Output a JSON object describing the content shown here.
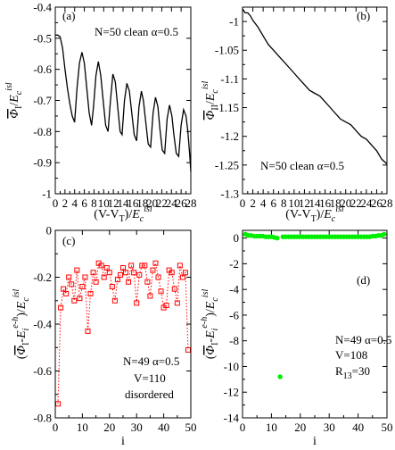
{
  "chart_data": [
    {
      "id": "a",
      "type": "line",
      "panel_label": "(a)",
      "annotation_lines": [
        "N=50  clean  α=0.5"
      ],
      "xlabel": "(V-V_T)/E_c^isl",
      "ylabel": "Φ_I/E_c^isl (overlined)",
      "xlim": [
        0,
        28
      ],
      "ylim": [
        -1,
        -0.4
      ],
      "xticks": [
        0,
        2,
        4,
        6,
        8,
        10,
        12,
        14,
        16,
        18,
        20,
        22,
        24,
        26,
        28
      ],
      "yticks": [
        -1,
        -0.9,
        -0.8,
        -0.7,
        -0.6,
        -0.5,
        -0.4
      ],
      "ytick_labels": [
        "-1",
        "-0.9",
        "-0.8",
        "-0.7",
        "-0.6",
        "-0.5",
        "-0.4"
      ],
      "series": [
        {
          "color": "#000000",
          "x": [
            0,
            0.5,
            1,
            1.5,
            2,
            2.5,
            3,
            3.5,
            4.0,
            4.5,
            5,
            5.5,
            6.0,
            6.5,
            7,
            7.5,
            7.9,
            8.4,
            8.9,
            9.4,
            9.9,
            10.4,
            10.9,
            11.4,
            11.9,
            12.4,
            12.9,
            13.4,
            13.8,
            14.3,
            14.8,
            15.3,
            15.8,
            16.3,
            16.8,
            17.3,
            17.8,
            18.2,
            18.7,
            19.2,
            19.7,
            20.2,
            20.7,
            21.2,
            21.6,
            22.1,
            22.6,
            23.1,
            23.6,
            24.1,
            24.5,
            25.0,
            25.5,
            26.0,
            26.5,
            27.0,
            27.4,
            27.8,
            28
          ],
          "y": [
            -0.49,
            -0.49,
            -0.495,
            -0.53,
            -0.6,
            -0.66,
            -0.71,
            -0.75,
            -0.77,
            -0.66,
            -0.58,
            -0.545,
            -0.58,
            -0.66,
            -0.74,
            -0.78,
            -0.72,
            -0.62,
            -0.575,
            -0.62,
            -0.7,
            -0.78,
            -0.8,
            -0.7,
            -0.615,
            -0.64,
            -0.72,
            -0.8,
            -0.81,
            -0.7,
            -0.645,
            -0.67,
            -0.74,
            -0.81,
            -0.83,
            -0.72,
            -0.67,
            -0.7,
            -0.77,
            -0.84,
            -0.85,
            -0.74,
            -0.69,
            -0.72,
            -0.79,
            -0.86,
            -0.87,
            -0.76,
            -0.715,
            -0.75,
            -0.81,
            -0.87,
            -0.88,
            -0.78,
            -0.73,
            -0.75,
            -0.8,
            -0.88,
            -0.93
          ]
        }
      ]
    },
    {
      "id": "b",
      "type": "line",
      "panel_label": "(b)",
      "annotation_lines": [
        "N=50  clean  α=0.5"
      ],
      "xlabel": "(V-V_T)/E_c^isl",
      "ylabel": "Φ_II/E_c^isl (overlined)",
      "xlim": [
        0,
        28
      ],
      "ylim": [
        -1.3,
        -0.975
      ],
      "xticks": [
        0,
        2,
        4,
        6,
        8,
        10,
        12,
        14,
        16,
        18,
        20,
        22,
        24,
        26,
        28
      ],
      "yticks": [
        -1.3,
        -1.25,
        -1.2,
        -1.15,
        -1.1,
        -1.05,
        -1
      ],
      "ytick_labels": [
        "-1.3",
        "-1.25",
        "-1.2",
        "-1.15",
        "-1.1",
        "-1.05",
        "-1"
      ],
      "series": [
        {
          "color": "#000000",
          "x": [
            0,
            0.5,
            1,
            1.5,
            2,
            3,
            4,
            5,
            6,
            7,
            8,
            9,
            10,
            11,
            12,
            13,
            14,
            15,
            16,
            17,
            18,
            19,
            20,
            21,
            22,
            23,
            24,
            25,
            26,
            27,
            28
          ],
          "y": [
            -0.978,
            -0.985,
            -0.985,
            -0.99,
            -0.998,
            -1.01,
            -1.025,
            -1.04,
            -1.05,
            -1.06,
            -1.07,
            -1.08,
            -1.09,
            -1.1,
            -1.11,
            -1.12,
            -1.125,
            -1.13,
            -1.14,
            -1.15,
            -1.16,
            -1.17,
            -1.175,
            -1.18,
            -1.19,
            -1.2,
            -1.205,
            -1.215,
            -1.225,
            -1.24,
            -1.248
          ]
        }
      ]
    },
    {
      "id": "c",
      "type": "line",
      "panel_label": "(c)",
      "annotation_lines": [
        "N=49  α=0.5",
        "V=110",
        "disordered"
      ],
      "xlabel": "i",
      "ylabel": "(Φ_I - E_i^{e-h})/E_c^isl",
      "xlim": [
        0,
        50
      ],
      "ylim": [
        -0.8,
        0
      ],
      "xticks": [
        0,
        10,
        20,
        30,
        40,
        50
      ],
      "yticks": [
        -0.8,
        -0.6,
        -0.4,
        -0.2,
        0
      ],
      "ytick_labels": [
        "-0.8",
        "-0.6",
        "-0.4",
        "-0.2",
        "0"
      ],
      "series": [
        {
          "color": "#ff0000",
          "marker": "open-square",
          "x": [
            1,
            2,
            3,
            4,
            5,
            6,
            7,
            8,
            9,
            10,
            11,
            12,
            13,
            14,
            15,
            16,
            17,
            18,
            19,
            20,
            21,
            22,
            23,
            24,
            25,
            26,
            27,
            28,
            29,
            30,
            31,
            32,
            33,
            34,
            35,
            36,
            37,
            38,
            39,
            40,
            41,
            42,
            43,
            44,
            45,
            46,
            47,
            48,
            49
          ],
          "y": [
            -0.74,
            -0.33,
            -0.25,
            -0.27,
            -0.2,
            -0.23,
            -0.3,
            -0.17,
            -0.29,
            -0.24,
            -0.2,
            -0.43,
            -0.27,
            -0.18,
            -0.22,
            -0.14,
            -0.15,
            -0.2,
            -0.16,
            -0.18,
            -0.24,
            -0.3,
            -0.21,
            -0.19,
            -0.16,
            -0.18,
            -0.22,
            -0.15,
            -0.18,
            -0.31,
            -0.19,
            -0.15,
            -0.15,
            -0.22,
            -0.28,
            -0.17,
            -0.14,
            -0.2,
            -0.26,
            -0.33,
            -0.32,
            -0.17,
            -0.18,
            -0.25,
            -0.31,
            -0.15,
            -0.2,
            -0.18,
            -0.51
          ]
        }
      ]
    },
    {
      "id": "d",
      "type": "scatter",
      "panel_label": "(d)",
      "annotation_lines": [
        "N=49  α=0.5",
        "V=108",
        "R_13=30"
      ],
      "xlabel": "i",
      "ylabel": "(Φ_I - E_i^{e-h})/E_c^isl",
      "xlim": [
        0,
        50
      ],
      "ylim": [
        -14,
        0.6
      ],
      "xticks": [
        0,
        10,
        20,
        30,
        40,
        50
      ],
      "yticks": [
        -14,
        -12,
        -10,
        -8,
        -6,
        -4,
        -2,
        0
      ],
      "ytick_labels": [
        "-14",
        "-12",
        "-10",
        "-8",
        "-6",
        "-4",
        "-2",
        "0"
      ],
      "series": [
        {
          "color": "#00ee00",
          "marker": "filled-circle",
          "x": [
            1,
            2,
            3,
            4,
            5,
            6,
            7,
            8,
            9,
            10,
            11,
            12,
            13,
            14,
            15,
            16,
            17,
            18,
            19,
            20,
            21,
            22,
            23,
            24,
            25,
            26,
            27,
            28,
            29,
            30,
            31,
            32,
            33,
            34,
            35,
            36,
            37,
            38,
            39,
            40,
            41,
            42,
            43,
            44,
            45,
            46,
            47,
            48,
            49
          ],
          "y": [
            0.3,
            0.2,
            0.2,
            0.15,
            0.15,
            0.15,
            0.15,
            0.1,
            0.1,
            0.1,
            0.05,
            0.0,
            -10.8,
            0.1,
            0.1,
            0.1,
            0.1,
            0.1,
            0.1,
            0.1,
            0.1,
            0.1,
            0.1,
            0.1,
            0.1,
            0.1,
            0.1,
            0.1,
            0.1,
            0.1,
            0.1,
            0.1,
            0.1,
            0.1,
            0.1,
            0.1,
            0.1,
            0.1,
            0.1,
            0.1,
            0.1,
            0.1,
            0.1,
            0.1,
            0.15,
            0.15,
            0.2,
            0.2,
            0.3
          ]
        }
      ]
    }
  ]
}
